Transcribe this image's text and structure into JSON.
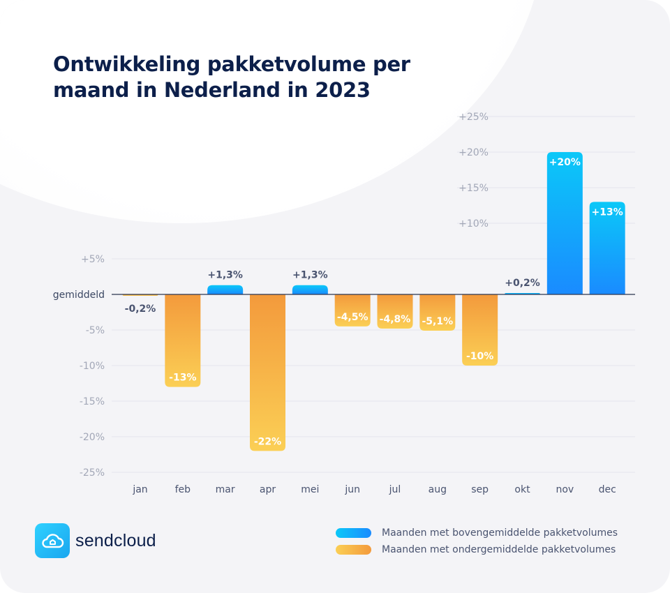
{
  "title": {
    "line1": "Ontwikkeling pakketvolume per",
    "line2": "maand in Nederland in 2023"
  },
  "chart_data": {
    "type": "bar",
    "title": "Ontwikkeling pakketvolume per maand in Nederland in 2023",
    "categories": [
      "jan",
      "feb",
      "mar",
      "apr",
      "mei",
      "jun",
      "jul",
      "aug",
      "sep",
      "okt",
      "nov",
      "dec"
    ],
    "values": [
      -0.2,
      -13,
      1.3,
      -22,
      1.3,
      -4.5,
      -4.8,
      -5.1,
      -10,
      0.2,
      20,
      13
    ],
    "data_labels": [
      "-0,2%",
      "-13%",
      "+1,3%",
      "-22%",
      "+1,3%",
      "-4,5%",
      "-4,8%",
      "-5,1%",
      "-10%",
      "+0,2%",
      "+20%",
      "+13%"
    ],
    "ylim": [
      -25,
      25
    ],
    "yticks": [
      25,
      20,
      15,
      10,
      5,
      0,
      -5,
      -10,
      -15,
      -20,
      -25
    ],
    "ytick_labels": [
      "+25%",
      "+20%",
      "+15%",
      "+10%",
      "+5%",
      "gemiddeld",
      "-5%",
      "-10%",
      "-15%",
      "-20%",
      "-25%"
    ],
    "xlabel": "",
    "ylabel": "",
    "grid": true
  },
  "colors": {
    "above_top": "#0bc8f8",
    "above_bottom": "#1a8bff",
    "below_top": "#f39a3c",
    "below_bottom": "#fbcf55"
  },
  "logo": {
    "text": "sendcloud",
    "icon": "cloud-icon"
  },
  "legend": {
    "items": [
      {
        "label": "Maanden met bovengemiddelde pakketvolumes",
        "series": "above"
      },
      {
        "label": "Maanden met ondergemiddelde pakketvolumes",
        "series": "below"
      }
    ]
  }
}
